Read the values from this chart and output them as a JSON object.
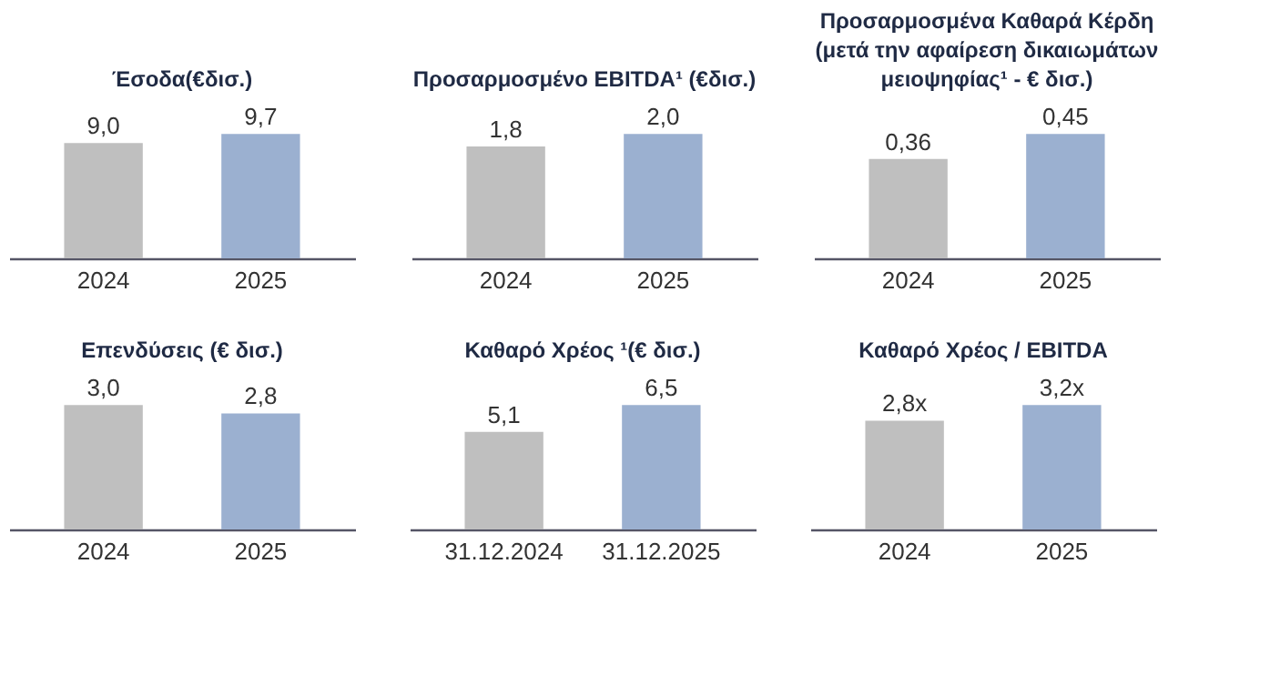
{
  "chart_data": [
    {
      "type": "bar",
      "title": "Έσοδα(€δισ.)",
      "categories": [
        "2024",
        "2025"
      ],
      "values": [
        9.0,
        9.7
      ],
      "value_labels": [
        "9,0",
        "9,7"
      ],
      "colors": [
        "#bfbfbf",
        "#9bb0d0"
      ]
    },
    {
      "type": "bar",
      "title": "Προσαρμοσμένο  EBITDA¹ (€δισ.)",
      "categories": [
        "2024",
        "2025"
      ],
      "values": [
        1.8,
        2.0
      ],
      "value_labels": [
        "1,8",
        "2,0"
      ],
      "colors": [
        "#bfbfbf",
        "#9bb0d0"
      ]
    },
    {
      "type": "bar",
      "title": "Προσαρμοσμένα Καθαρά Κέρδη (μετά την αφαίρεση δικαιωμάτων μειοψηφίας¹  - € δισ.)",
      "categories": [
        "2024",
        "2025"
      ],
      "values": [
        0.36,
        0.45
      ],
      "value_labels": [
        "0,36",
        "0,45"
      ],
      "colors": [
        "#bfbfbf",
        "#9bb0d0"
      ]
    },
    {
      "type": "bar",
      "title": "Επενδύσεις (€ δισ.)",
      "categories": [
        "2024",
        "2025"
      ],
      "values": [
        3.0,
        2.8
      ],
      "value_labels": [
        "3,0",
        "2,8"
      ],
      "colors": [
        "#bfbfbf",
        "#9bb0d0"
      ]
    },
    {
      "type": "bar",
      "title": "Καθαρό Χρέος ¹(€ δισ.)",
      "categories": [
        "31.12.2024",
        "31.12.2025"
      ],
      "values": [
        5.1,
        6.5
      ],
      "value_labels": [
        "5,1",
        "6,5"
      ],
      "colors": [
        "#bfbfbf",
        "#9bb0d0"
      ]
    },
    {
      "type": "bar",
      "title": "Καθαρό Χρέος / EBITDA",
      "categories": [
        "2024",
        "2025"
      ],
      "values": [
        2.8,
        3.2
      ],
      "value_labels": [
        "2,8x",
        "3,2x"
      ],
      "colors": [
        "#bfbfbf",
        "#9bb0d0"
      ]
    }
  ]
}
